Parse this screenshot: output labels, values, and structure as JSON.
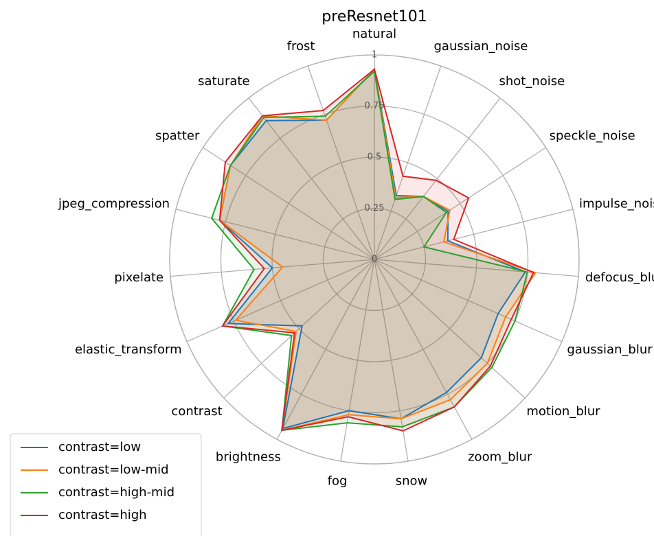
{
  "chart_data": {
    "type": "radar",
    "title": "preResnet101",
    "categories": [
      "natural",
      "gaussian_noise",
      "shot_noise",
      "speckle_noise",
      "impulse_noise",
      "defocus_blur",
      "gaussian_blur",
      "motion_blur",
      "zoom_blur",
      "snow",
      "fog",
      "brightness",
      "contrast",
      "elastic_transform",
      "pixelate",
      "jpeg_compression",
      "spatter",
      "saturate",
      "frost"
    ],
    "series": [
      {
        "name": "contrast=low",
        "color": "#1f77b4",
        "values": [
          0.93,
          0.33,
          0.39,
          0.43,
          0.37,
          0.74,
          0.66,
          0.71,
          0.74,
          0.79,
          0.75,
          0.94,
          0.48,
          0.78,
          0.5,
          0.78,
          0.84,
          0.86,
          0.72
        ]
      },
      {
        "name": "contrast=low-mid",
        "color": "#ff7f0e",
        "values": [
          0.93,
          0.32,
          0.39,
          0.44,
          0.35,
          0.79,
          0.7,
          0.75,
          0.78,
          0.79,
          0.77,
          0.95,
          0.52,
          0.74,
          0.45,
          0.78,
          0.84,
          0.89,
          0.72
        ]
      },
      {
        "name": "contrast=high-mid",
        "color": "#2ca02c",
        "values": [
          0.92,
          0.31,
          0.39,
          0.42,
          0.25,
          0.75,
          0.75,
          0.78,
          0.82,
          0.83,
          0.81,
          0.95,
          0.55,
          0.81,
          0.59,
          0.82,
          0.84,
          0.88,
          0.74
        ]
      },
      {
        "name": "contrast=high",
        "color": "#d62728",
        "values": [
          0.93,
          0.43,
          0.49,
          0.55,
          0.4,
          0.78,
          0.73,
          0.77,
          0.82,
          0.85,
          0.78,
          0.95,
          0.53,
          0.81,
          0.54,
          0.78,
          0.87,
          0.89,
          0.77
        ]
      }
    ],
    "ylim": [
      0,
      1
    ],
    "yticks": [
      0,
      0.25,
      0.5,
      0.75,
      1
    ],
    "grid": true,
    "legend": "lower left"
  }
}
